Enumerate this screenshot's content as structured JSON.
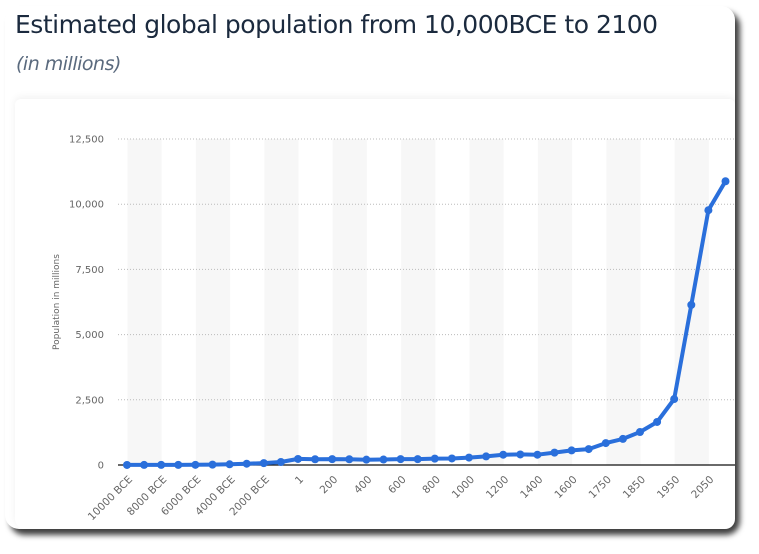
{
  "header": {
    "title": "Estimated global population from 10,000BCE to 2100",
    "subtitle": "(in millions)"
  },
  "colors": {
    "line": "#2a6fdb",
    "grid": "#bbbbbb",
    "band": "#f7f7f7",
    "axis": "#111111"
  },
  "chart_data": {
    "type": "line",
    "title": "Estimated global population from 10,000BCE to 2100",
    "subtitle": "(in millions)",
    "xlabel": "",
    "ylabel": "Population in millions",
    "ylim": [
      0,
      12500
    ],
    "yticks": [
      0,
      2500,
      5000,
      7500,
      10000,
      12500
    ],
    "ytick_labels": [
      "0",
      "2,500",
      "5,000",
      "7,500",
      "10,000",
      "12,500"
    ],
    "grid": true,
    "x": [
      "10000 BCE",
      "9000 BCE",
      "8000 BCE",
      "7000 BCE",
      "6000 BCE",
      "5000 BCE",
      "4000 BCE",
      "3000 BCE",
      "2000 BCE",
      "1000 BCE",
      "1",
      "100",
      "200",
      "300",
      "400",
      "500",
      "600",
      "700",
      "800",
      "900",
      "1000",
      "1100",
      "1200",
      "1300",
      "1400",
      "1500",
      "1600",
      "1700",
      "1750",
      "1800",
      "1850",
      "1900",
      "1950",
      "2000",
      "2050",
      "2100"
    ],
    "xtick_labels": [
      "10000 BCE",
      "8000 BCE",
      "6000 BCE",
      "4000 BCE",
      "2000 BCE",
      "1",
      "200",
      "400",
      "600",
      "800",
      "1000",
      "1200",
      "1400",
      "1600",
      "1750",
      "1850",
      "1950",
      "2050"
    ],
    "series": [
      {
        "name": "Population in millions",
        "values": [
          2,
          4,
          5,
          5,
          7,
          14,
          27,
          50,
          72,
          115,
          232,
          220,
          225,
          220,
          205,
          210,
          225,
          225,
          245,
          250,
          285,
          330,
          395,
          405,
          395,
          475,
          560,
          610,
          840,
          1000,
          1265,
          1650,
          2530,
          6140,
          9770,
          10880
        ]
      }
    ]
  }
}
